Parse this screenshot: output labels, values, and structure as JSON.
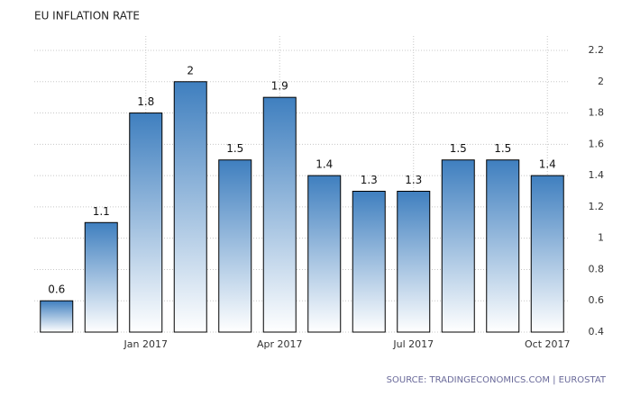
{
  "chart_data": {
    "type": "bar",
    "title": "EU INFLATION RATE",
    "source": "SOURCE: TRADINGECONOMICS.COM | EUROSTAT",
    "categories": [
      null,
      null,
      "Jan 2017",
      null,
      null,
      "Apr 2017",
      null,
      null,
      "Jul 2017",
      null,
      null,
      "Oct 2017"
    ],
    "values": [
      0.6,
      1.1,
      1.8,
      2,
      1.5,
      1.9,
      1.4,
      1.3,
      1.3,
      1.5,
      1.5,
      1.4
    ],
    "color": "#3f7fbf",
    "ylim": [
      0.4,
      2.2
    ],
    "yticks": [
      0.4,
      0.6,
      0.8,
      1,
      1.2,
      1.4,
      1.6,
      1.8,
      2,
      2.2
    ],
    "grid": true
  }
}
